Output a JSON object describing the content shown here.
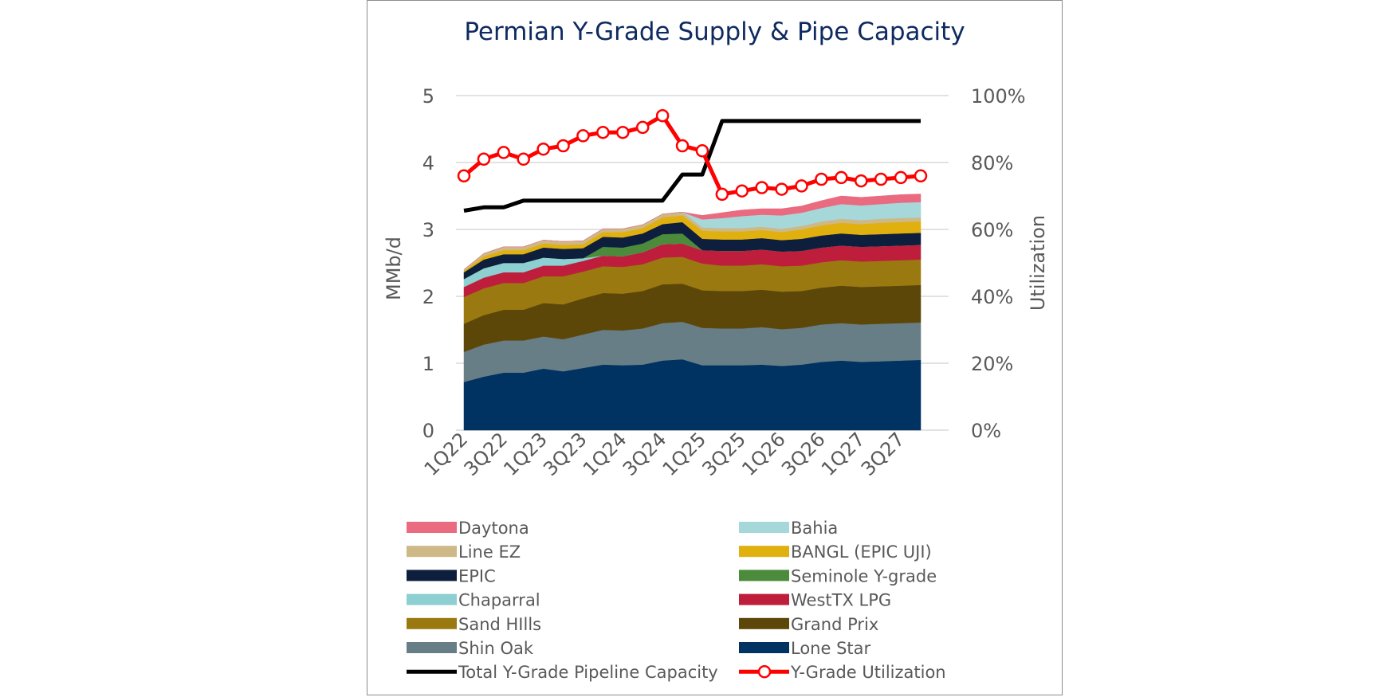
{
  "chart_data": {
    "type": "area",
    "title": "Permian Y-Grade Supply & Pipe Capacity",
    "ylabel": "MMb/d",
    "y2label": "Utilization",
    "ylim": [
      0,
      5
    ],
    "y2lim": [
      0,
      1
    ],
    "yticks": [
      "0",
      "1",
      "2",
      "3",
      "4",
      "5"
    ],
    "y2ticks": [
      "0%",
      "20%",
      "40%",
      "60%",
      "80%",
      "100%"
    ],
    "categories": [
      "1Q22",
      "2Q22",
      "3Q22",
      "4Q22",
      "1Q23",
      "2Q23",
      "3Q23",
      "4Q23",
      "1Q24",
      "2Q24",
      "3Q24",
      "4Q24",
      "1Q25",
      "2Q25",
      "3Q25",
      "4Q25",
      "1Q26",
      "2Q26",
      "3Q26",
      "4Q26",
      "1Q27",
      "2Q27",
      "3Q27",
      "4Q27"
    ],
    "xtick_labels": [
      "1Q22",
      "3Q22",
      "1Q23",
      "3Q23",
      "1Q24",
      "3Q24",
      "1Q25",
      "3Q25",
      "1Q26",
      "3Q26",
      "1Q27",
      "3Q27"
    ],
    "series": [
      {
        "name": "Lone Star",
        "color": "#003262",
        "values": [
          0.72,
          0.8,
          0.86,
          0.86,
          0.92,
          0.88,
          0.93,
          0.98,
          0.97,
          0.98,
          1.04,
          1.06,
          0.97,
          0.97,
          0.97,
          0.98,
          0.96,
          0.98,
          1.02,
          1.04,
          1.02,
          1.03,
          1.04,
          1.05
        ]
      },
      {
        "name": "Shin Oak",
        "color": "#687e86",
        "values": [
          0.45,
          0.48,
          0.48,
          0.48,
          0.48,
          0.48,
          0.5,
          0.52,
          0.52,
          0.54,
          0.56,
          0.56,
          0.56,
          0.55,
          0.55,
          0.56,
          0.55,
          0.55,
          0.56,
          0.56,
          0.56,
          0.56,
          0.56,
          0.56
        ]
      },
      {
        "name": "Grand Prix",
        "color": "#5c4709",
        "values": [
          0.42,
          0.44,
          0.46,
          0.46,
          0.5,
          0.52,
          0.54,
          0.55,
          0.55,
          0.56,
          0.58,
          0.57,
          0.56,
          0.56,
          0.56,
          0.56,
          0.56,
          0.55,
          0.55,
          0.56,
          0.56,
          0.56,
          0.56,
          0.56
        ]
      },
      {
        "name": "Sand HIlls",
        "color": "#9a7a10",
        "values": [
          0.4,
          0.4,
          0.4,
          0.4,
          0.4,
          0.42,
          0.4,
          0.4,
          0.4,
          0.4,
          0.4,
          0.4,
          0.4,
          0.38,
          0.38,
          0.38,
          0.38,
          0.38,
          0.38,
          0.38,
          0.38,
          0.38,
          0.38,
          0.38
        ]
      },
      {
        "name": "WestTX LPG",
        "color": "#be1e3c",
        "values": [
          0.15,
          0.16,
          0.16,
          0.16,
          0.16,
          0.16,
          0.16,
          0.16,
          0.16,
          0.18,
          0.2,
          0.2,
          0.2,
          0.22,
          0.22,
          0.22,
          0.22,
          0.22,
          0.22,
          0.22,
          0.22,
          0.22,
          0.22,
          0.22
        ]
      },
      {
        "name": "Chaparral",
        "color": "#8ecfd2",
        "values": [
          0.12,
          0.14,
          0.14,
          0.14,
          0.12,
          0.1,
          0.04,
          0.0,
          0.0,
          0.0,
          0.0,
          0.0,
          0.0,
          0.0,
          0.0,
          0.0,
          0.0,
          0.0,
          0.0,
          0.0,
          0.0,
          0.0,
          0.0,
          0.0
        ]
      },
      {
        "name": "Seminole Y-grade",
        "color": "#4b8b3b",
        "values": [
          0.0,
          0.0,
          0.0,
          0.0,
          0.0,
          0.0,
          0.0,
          0.13,
          0.13,
          0.13,
          0.15,
          0.15,
          0.0,
          0.0,
          0.0,
          0.0,
          0.0,
          0.0,
          0.0,
          0.0,
          0.0,
          0.0,
          0.0,
          0.0
        ]
      },
      {
        "name": "EPIC",
        "color": "#0e1f3d",
        "values": [
          0.1,
          0.13,
          0.13,
          0.13,
          0.15,
          0.15,
          0.15,
          0.15,
          0.15,
          0.15,
          0.15,
          0.17,
          0.17,
          0.17,
          0.17,
          0.17,
          0.17,
          0.18,
          0.18,
          0.18,
          0.18,
          0.18,
          0.18,
          0.18
        ]
      },
      {
        "name": "BANGL (EPIC UJI)",
        "color": "#e0b00e",
        "values": [
          0.02,
          0.05,
          0.06,
          0.06,
          0.06,
          0.06,
          0.06,
          0.07,
          0.08,
          0.08,
          0.1,
          0.1,
          0.12,
          0.12,
          0.12,
          0.12,
          0.12,
          0.14,
          0.15,
          0.16,
          0.16,
          0.17,
          0.17,
          0.17
        ]
      },
      {
        "name": "Line EZ",
        "color": "#cdb886",
        "values": [
          0.02,
          0.04,
          0.05,
          0.05,
          0.05,
          0.05,
          0.05,
          0.05,
          0.05,
          0.05,
          0.05,
          0.05,
          0.05,
          0.05,
          0.05,
          0.05,
          0.05,
          0.05,
          0.06,
          0.06,
          0.06,
          0.06,
          0.06,
          0.06
        ]
      },
      {
        "name": "Bahia",
        "color": "#a6d7d9",
        "values": [
          0.0,
          0.0,
          0.0,
          0.0,
          0.0,
          0.0,
          0.0,
          0.0,
          0.0,
          0.0,
          0.0,
          0.0,
          0.12,
          0.15,
          0.18,
          0.18,
          0.2,
          0.2,
          0.2,
          0.22,
          0.22,
          0.22,
          0.23,
          0.23
        ]
      },
      {
        "name": "Daytona",
        "color": "#ea6a80",
        "values": [
          0.0,
          0.0,
          0.0,
          0.0,
          0.0,
          0.0,
          0.0,
          0.0,
          0.0,
          0.0,
          0.0,
          0.0,
          0.06,
          0.08,
          0.09,
          0.09,
          0.1,
          0.1,
          0.11,
          0.12,
          0.12,
          0.12,
          0.12,
          0.12
        ]
      }
    ],
    "capacity": {
      "name": "Total Y-Grade Pipeline Capacity",
      "color": "#000000",
      "values": [
        3.28,
        3.33,
        3.33,
        3.43,
        3.43,
        3.43,
        3.43,
        3.43,
        3.43,
        3.43,
        3.43,
        3.82,
        3.82,
        4.62,
        4.62,
        4.62,
        4.62,
        4.62,
        4.62,
        4.62,
        4.62,
        4.62,
        4.62,
        4.62
      ]
    },
    "utilization": {
      "name": "Y-Grade Utilization",
      "color": "#ff0000",
      "values": [
        0.76,
        0.81,
        0.83,
        0.81,
        0.84,
        0.85,
        0.88,
        0.89,
        0.89,
        0.905,
        0.94,
        0.85,
        0.835,
        0.705,
        0.715,
        0.725,
        0.72,
        0.73,
        0.75,
        0.755,
        0.745,
        0.75,
        0.755,
        0.76
      ]
    },
    "legend_order": [
      [
        "Daytona",
        "Bahia"
      ],
      [
        "Line EZ",
        "BANGL (EPIC UJI)"
      ],
      [
        "EPIC",
        "Seminole Y-grade"
      ],
      [
        "Chaparral",
        "WestTX LPG"
      ],
      [
        "Sand HIlls",
        "Grand Prix"
      ],
      [
        "Shin Oak",
        "Lone Star"
      ],
      [
        "Total Y-Grade Pipeline Capacity",
        "Y-Grade Utilization"
      ]
    ],
    "grid": true,
    "legend_position": "bottom"
  }
}
